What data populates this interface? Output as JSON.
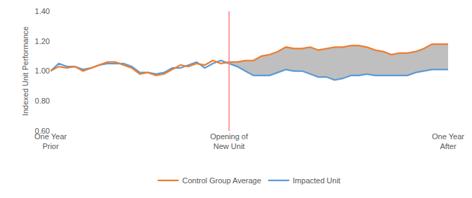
{
  "chart_data": {
    "type": "line",
    "y_label": "Indexed Unit Performance",
    "categories": [
      "One Year Prior",
      null,
      null,
      null,
      null,
      null,
      null,
      null,
      null,
      null,
      null,
      null,
      null,
      null,
      null,
      null,
      null,
      null,
      null,
      null,
      null,
      null,
      "Opening of New Unit",
      null,
      null,
      null,
      null,
      null,
      null,
      null,
      null,
      null,
      null,
      null,
      null,
      null,
      null,
      null,
      null,
      null,
      null,
      null,
      null,
      null,
      null,
      null,
      null,
      null,
      null,
      "One Year After"
    ],
    "series": [
      {
        "name": "Impacted Unit",
        "color": "#5b9bd5",
        "values": [
          1.0,
          1.05,
          1.03,
          1.03,
          1.01,
          1.02,
          1.04,
          1.05,
          1.05,
          1.05,
          1.03,
          0.99,
          0.99,
          0.98,
          0.99,
          1.02,
          1.02,
          1.04,
          1.06,
          1.02,
          1.05,
          1.07,
          1.05,
          1.03,
          1.0,
          0.97,
          0.97,
          0.97,
          0.99,
          1.01,
          1.0,
          1.0,
          0.98,
          0.96,
          0.96,
          0.94,
          0.95,
          0.97,
          0.97,
          0.98,
          0.97,
          0.97,
          0.97,
          0.97,
          0.97,
          0.99,
          1.0,
          1.01,
          1.01,
          1.01
        ]
      },
      {
        "name": "Control Group Average",
        "color": "#ed7d31",
        "values": [
          1.0,
          1.03,
          1.02,
          1.03,
          1.0,
          1.02,
          1.04,
          1.06,
          1.06,
          1.04,
          1.02,
          0.98,
          0.99,
          0.97,
          0.98,
          1.01,
          1.04,
          1.03,
          1.05,
          1.04,
          1.07,
          1.05,
          1.06,
          1.06,
          1.07,
          1.07,
          1.1,
          1.11,
          1.13,
          1.16,
          1.15,
          1.15,
          1.16,
          1.14,
          1.15,
          1.16,
          1.16,
          1.17,
          1.17,
          1.16,
          1.14,
          1.13,
          1.11,
          1.12,
          1.12,
          1.13,
          1.15,
          1.18,
          1.18,
          1.18
        ]
      }
    ],
    "ylim": [
      0.6,
      1.4
    ],
    "yticks": [
      {
        "value": 0.6,
        "label": "0.60"
      },
      {
        "value": 0.8,
        "label": "0.80"
      },
      {
        "value": 1.0,
        "label": "1.00"
      },
      {
        "value": 1.2,
        "label": "1.20"
      },
      {
        "value": 1.4,
        "label": "1.40"
      }
    ],
    "grid": false,
    "legend": "bottom"
  }
}
